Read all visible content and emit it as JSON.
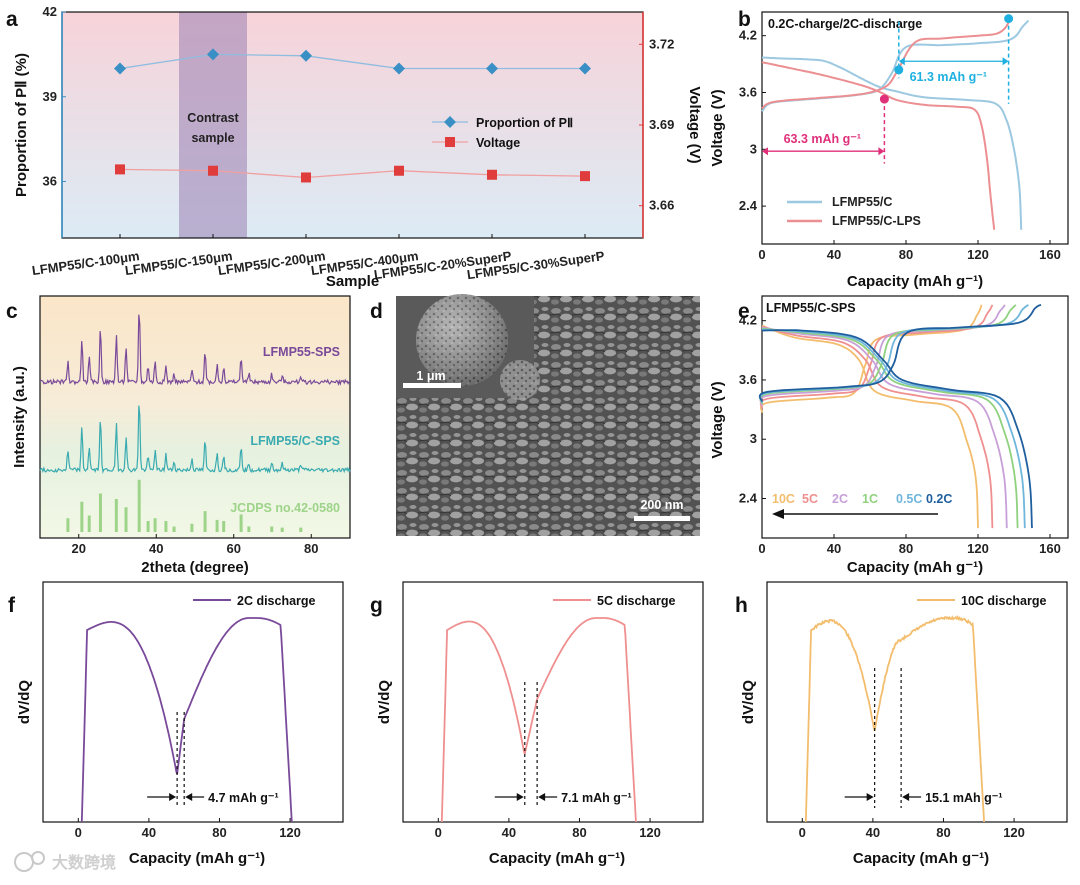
{
  "watermark": "大数跨境",
  "panels": {
    "a": {
      "label": "a"
    },
    "b": {
      "label": "b"
    },
    "c": {
      "label": "c"
    },
    "d": {
      "label": "d"
    },
    "e": {
      "label": "e"
    },
    "f": {
      "label": "f"
    },
    "g": {
      "label": "g"
    },
    "h": {
      "label": "h"
    }
  },
  "colors": {
    "blue": "#3a8fc4",
    "red": "#e03c3c",
    "lfmpc": "#9cc8e0",
    "lfmplps": "#ec8f92",
    "cyan": "#1fb0e0",
    "magenta": "#e0307a",
    "purple": "#7a4a9a",
    "teal": "#3aabb0",
    "jcpds": "#9ed48a",
    "c02": "#1f5f9e",
    "c05": "#6fb6dc",
    "c1": "#8fd17e",
    "c2": "#c8a0d8",
    "c5": "#ef8f8f",
    "c10": "#f3bd6e"
  },
  "chart_data": [
    {
      "panel": "a",
      "type": "scatter",
      "categories": [
        "LFMP55/C-100μm",
        "LFMP55/C-150μm",
        "LFMP55/C-200μm",
        "LFMP55/C-400μm",
        "LFMP55/C-20%SuperP",
        "LFMP55/C-30%SuperP"
      ],
      "xlabel": "Sample",
      "ylabel": "Proportion of PⅡ (%)",
      "y2label": "Voltage (V)",
      "ylim": [
        34,
        42
      ],
      "y2lim": [
        3.648,
        3.732
      ],
      "yticks": [
        36,
        39,
        42
      ],
      "y2ticks": [
        3.66,
        3.69,
        3.72
      ],
      "highlight": {
        "category": "LFMP55/C-150μm",
        "text_line1": "Contrast",
        "text_line2": "sample"
      },
      "series": [
        {
          "name": "Proportion of PⅡ",
          "axis": "left",
          "marker": "diamond",
          "values": [
            40.0,
            40.5,
            40.45,
            40.0,
            40.0,
            40.0
          ]
        },
        {
          "name": "Voltage",
          "axis": "right",
          "marker": "square",
          "values": [
            3.6735,
            3.673,
            3.6705,
            3.673,
            3.6715,
            3.671
          ]
        }
      ]
    },
    {
      "panel": "b",
      "type": "line",
      "title": "0.2C-charge/2C-discharge",
      "xlabel": "Capacity (mAh g⁻¹)",
      "ylabel": "Voltage (V)",
      "xlim": [
        0,
        170
      ],
      "ylim": [
        2.0,
        4.45
      ],
      "xticks": [
        0,
        40,
        80,
        120,
        160
      ],
      "yticks": [
        2.4,
        3.0,
        3.6,
        4.2
      ],
      "legend": "bottom-left",
      "series": [
        {
          "name": "LFMP55/C",
          "charge": [
            [
              0,
              3.4
            ],
            [
              3,
              3.47
            ],
            [
              8,
              3.5
            ],
            [
              20,
              3.52
            ],
            [
              40,
              3.55
            ],
            [
              55,
              3.58
            ],
            [
              65,
              3.63
            ],
            [
              72,
              3.8
            ],
            [
              80,
              4.08
            ],
            [
              100,
              4.1
            ],
            [
              120,
              4.12
            ],
            [
              138,
              4.16
            ],
            [
              145,
              4.3
            ],
            [
              148,
              4.36
            ]
          ],
          "discharge": [
            [
              0,
              3.97
            ],
            [
              10,
              3.96
            ],
            [
              25,
              3.95
            ],
            [
              35,
              3.93
            ],
            [
              45,
              3.85
            ],
            [
              55,
              3.75
            ],
            [
              65,
              3.66
            ],
            [
              75,
              3.61
            ],
            [
              90,
              3.55
            ],
            [
              115,
              3.52
            ],
            [
              130,
              3.48
            ],
            [
              136,
              3.3
            ],
            [
              140,
              3.0
            ],
            [
              143,
              2.6
            ],
            [
              144,
              2.15
            ]
          ]
        },
        {
          "name": "LFMP55/C-LPS",
          "charge": [
            [
              0,
              3.43
            ],
            [
              3,
              3.48
            ],
            [
              10,
              3.51
            ],
            [
              30,
              3.54
            ],
            [
              50,
              3.57
            ],
            [
              62,
              3.61
            ],
            [
              70,
              3.68
            ],
            [
              75,
              3.82
            ],
            [
              85,
              4.13
            ],
            [
              100,
              4.17
            ],
            [
              120,
              4.2
            ],
            [
              130,
              4.22
            ],
            [
              135,
              4.28
            ],
            [
              138,
              4.38
            ]
          ],
          "discharge": [
            [
              0,
              3.92
            ],
            [
              10,
              3.88
            ],
            [
              20,
              3.84
            ],
            [
              30,
              3.8
            ],
            [
              45,
              3.73
            ],
            [
              58,
              3.66
            ],
            [
              66,
              3.6
            ],
            [
              75,
              3.52
            ],
            [
              90,
              3.47
            ],
            [
              108,
              3.45
            ],
            [
              118,
              3.42
            ],
            [
              122,
              3.25
            ],
            [
              125,
              2.9
            ],
            [
              127,
              2.5
            ],
            [
              129,
              2.15
            ]
          ]
        }
      ],
      "annotations": [
        {
          "text": "61.3 mAh g⁻¹",
          "color": "cyan"
        },
        {
          "text": "63.3 mAh g⁻¹",
          "color": "magenta"
        }
      ],
      "markers": [
        [
          76,
          3.84
        ],
        [
          137,
          4.38
        ],
        [
          68,
          3.53
        ]
      ],
      "vlines": [
        76,
        137,
        68
      ]
    },
    {
      "panel": "c",
      "type": "line",
      "xlabel": "2theta (degree)",
      "ylabel": "Intensity (a.u.)",
      "xlim": [
        10,
        90
      ],
      "xticks": [
        20,
        40,
        60,
        80
      ],
      "series": [
        {
          "name": "LFMP55-SPS"
        },
        {
          "name": "LFMP55/C-SPS"
        },
        {
          "name": "JCDPS no.42-0580"
        }
      ],
      "peaks": [
        [
          17.2,
          0.25
        ],
        [
          20.8,
          0.55
        ],
        [
          22.7,
          0.3
        ],
        [
          25.6,
          0.7
        ],
        [
          29.7,
          0.6
        ],
        [
          32.2,
          0.45
        ],
        [
          35.6,
          0.95
        ],
        [
          37.9,
          0.2
        ],
        [
          39.7,
          0.25
        ],
        [
          42.5,
          0.2
        ],
        [
          44.6,
          0.1
        ],
        [
          49.2,
          0.15
        ],
        [
          52.6,
          0.38
        ],
        [
          55.7,
          0.22
        ],
        [
          57.4,
          0.2
        ],
        [
          61.9,
          0.32
        ],
        [
          63.9,
          0.1
        ],
        [
          69.8,
          0.1
        ],
        [
          72.5,
          0.08
        ],
        [
          77.3,
          0.08
        ]
      ]
    },
    {
      "panel": "d",
      "type": "table",
      "scalebar_inset": "1 μm",
      "scalebar_main": "200 nm"
    },
    {
      "panel": "e",
      "type": "line",
      "title": "LFMP55/C-SPS",
      "xlabel": "Capacity (mAh g⁻¹)",
      "ylabel": "Voltage (V)",
      "xlim": [
        0,
        170
      ],
      "ylim": [
        2.0,
        4.45
      ],
      "xticks": [
        0,
        40,
        80,
        120,
        160
      ],
      "yticks": [
        2.4,
        3.0,
        3.6,
        4.2
      ],
      "series": [
        {
          "name": "10C",
          "color": "c10",
          "discharge_end": 120,
          "charge_end": 122,
          "charge_plateau": 4.06,
          "discharge_plateau": 3.37
        },
        {
          "name": "5C",
          "color": "c5",
          "discharge_end": 128,
          "charge_end": 128,
          "charge_plateau": 4.08,
          "discharge_plateau": 3.41
        },
        {
          "name": "2C",
          "color": "c2",
          "discharge_end": 136,
          "charge_end": 135,
          "charge_plateau": 4.1,
          "discharge_plateau": 3.44
        },
        {
          "name": "1C",
          "color": "c1",
          "discharge_end": 142,
          "charge_end": 141,
          "charge_plateau": 4.11,
          "discharge_plateau": 3.46
        },
        {
          "name": "0.5C",
          "color": "c05",
          "discharge_end": 146,
          "charge_end": 148,
          "charge_plateau": 4.12,
          "discharge_plateau": 3.47
        },
        {
          "name": "0.2C",
          "color": "c02",
          "discharge_end": 150,
          "charge_end": 155,
          "charge_plateau": 4.13,
          "discharge_plateau": 3.48
        }
      ]
    },
    {
      "panel": "f",
      "type": "line",
      "series": [
        {
          "name": "2C discharge"
        }
      ],
      "xlabel": "Capacity (mAh g⁻¹)",
      "ylabel": "dV/dQ",
      "xlim": [
        -20,
        150
      ],
      "xticks": [
        0,
        40,
        80,
        120
      ],
      "start": 2,
      "end": 121,
      "dip": 56,
      "dip2": 60,
      "dip_depth": 0.82,
      "annotation": "4.7 mAh g⁻¹"
    },
    {
      "panel": "g",
      "type": "line",
      "series": [
        {
          "name": "5C discharge"
        }
      ],
      "xlabel": "Capacity (mAh g⁻¹)",
      "ylabel": "dV/dQ",
      "xlim": [
        -20,
        150
      ],
      "xticks": [
        0,
        40,
        80,
        120
      ],
      "start": 2,
      "end": 112,
      "dip": 49,
      "dip2": 56,
      "dip_depth": 0.72,
      "annotation": "7.1 mAh g⁻¹"
    },
    {
      "panel": "h",
      "type": "line",
      "series": [
        {
          "name": "10C discharge"
        }
      ],
      "xlabel": "Capacity (mAh g⁻¹)",
      "ylabel": "dV/dQ",
      "xlim": [
        -20,
        150
      ],
      "xticks": [
        0,
        40,
        80,
        120
      ],
      "start": 2,
      "end": 103,
      "dip": 41,
      "dip2": 56,
      "dip_depth": 0.6,
      "annotation": "15.1 mAh g⁻¹"
    }
  ]
}
